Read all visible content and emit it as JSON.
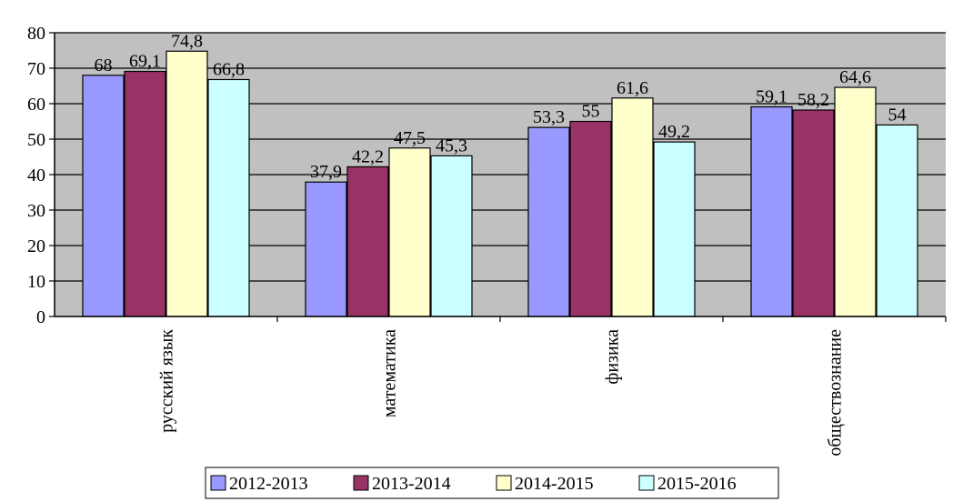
{
  "chart_data": {
    "type": "bar",
    "categories": [
      "русский язык",
      "математика",
      "физика",
      "обществознание"
    ],
    "series": [
      {
        "name": "2012-2013",
        "color": "#9999ff",
        "values": [
          68,
          37.9,
          53.3,
          59.1
        ],
        "labels": [
          "68",
          "37,9",
          "53,3",
          "59,1"
        ]
      },
      {
        "name": "2013-2014",
        "color": "#993366",
        "values": [
          69.1,
          42.2,
          55,
          58.2
        ],
        "labels": [
          "69,1",
          "42,2",
          "55",
          "58,2"
        ]
      },
      {
        "name": "2014-2015",
        "color": "#ffffcc",
        "values": [
          74.8,
          47.5,
          61.6,
          64.6
        ],
        "labels": [
          "74,8",
          "47,5",
          "61,6",
          "64,6"
        ]
      },
      {
        "name": "2015-2016",
        "color": "#ccffff",
        "values": [
          66.8,
          45.3,
          49.2,
          54
        ],
        "labels": [
          "66,8",
          "45,3",
          "49,2",
          "54"
        ]
      }
    ],
    "ylim": [
      0,
      80
    ],
    "yticks": [
      0,
      10,
      20,
      30,
      40,
      50,
      60,
      70,
      80
    ],
    "grid": true,
    "plot_background": "#c0c0c0",
    "legend_position": "bottom"
  }
}
